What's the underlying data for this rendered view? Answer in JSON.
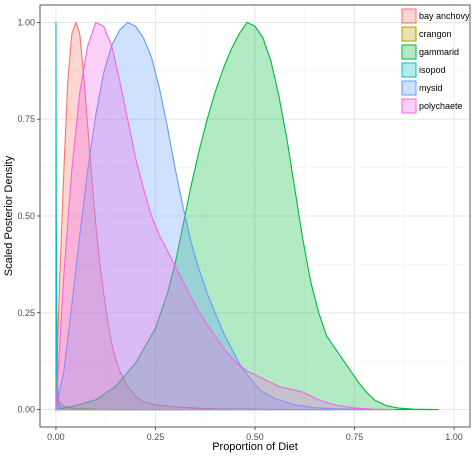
{
  "chart_data": {
    "type": "area",
    "title": "",
    "xlabel": "Proportion of Diet",
    "ylabel": "Scaled Posterior Density",
    "xlim": [
      -0.04,
      1.04
    ],
    "ylim": [
      -0.045,
      1.045
    ],
    "x_ticks": [
      0.0,
      0.25,
      0.5,
      0.75,
      1.0
    ],
    "x_tick_labels": [
      "0.00",
      "0.25",
      "0.50",
      "0.75",
      "1.00"
    ],
    "y_ticks": [
      0.0,
      0.25,
      0.5,
      0.75,
      1.0
    ],
    "y_tick_labels": [
      "0.00",
      "0.25",
      "0.50",
      "0.75",
      "1.00"
    ],
    "grid": true,
    "legend_position": "top-right",
    "series": [
      {
        "name": "bay anchovy",
        "color": "#F8766D",
        "points": [
          [
            0,
            0
          ],
          [
            0.005,
            0.2
          ],
          [
            0.01,
            0.35
          ],
          [
            0.02,
            0.62
          ],
          [
            0.03,
            0.85
          ],
          [
            0.04,
            0.97
          ],
          [
            0.05,
            1.0
          ],
          [
            0.06,
            0.97
          ],
          [
            0.07,
            0.86
          ],
          [
            0.08,
            0.73
          ],
          [
            0.09,
            0.6
          ],
          [
            0.1,
            0.48
          ],
          [
            0.11,
            0.38
          ],
          [
            0.12,
            0.3
          ],
          [
            0.13,
            0.23
          ],
          [
            0.14,
            0.17
          ],
          [
            0.15,
            0.13
          ],
          [
            0.16,
            0.1
          ],
          [
            0.18,
            0.06
          ],
          [
            0.2,
            0.035
          ],
          [
            0.22,
            0.02
          ],
          [
            0.25,
            0.012
          ],
          [
            0.3,
            0.007
          ],
          [
            0.35,
            0.004
          ],
          [
            0.4,
            0.002
          ],
          [
            0.5,
            0.001
          ],
          [
            0.6,
            0
          ]
        ]
      },
      {
        "name": "crangon",
        "color": "#B79F00",
        "points": [
          [
            0,
            0
          ],
          [
            0.003,
            0.04
          ],
          [
            0.008,
            0.02
          ],
          [
            0.02,
            0.008
          ],
          [
            0.05,
            0.003
          ],
          [
            0.1,
            0.001
          ],
          [
            0.2,
            0
          ]
        ]
      },
      {
        "name": "gammarid",
        "color": "#00BA38",
        "points": [
          [
            0,
            0
          ],
          [
            0.05,
            0.01
          ],
          [
            0.1,
            0.025
          ],
          [
            0.15,
            0.06
          ],
          [
            0.2,
            0.12
          ],
          [
            0.25,
            0.21
          ],
          [
            0.28,
            0.3
          ],
          [
            0.3,
            0.38
          ],
          [
            0.32,
            0.48
          ],
          [
            0.34,
            0.58
          ],
          [
            0.36,
            0.67
          ],
          [
            0.38,
            0.75
          ],
          [
            0.4,
            0.82
          ],
          [
            0.42,
            0.88
          ],
          [
            0.44,
            0.93
          ],
          [
            0.46,
            0.97
          ],
          [
            0.48,
            1.0
          ],
          [
            0.5,
            0.99
          ],
          [
            0.52,
            0.96
          ],
          [
            0.54,
            0.9
          ],
          [
            0.56,
            0.81
          ],
          [
            0.58,
            0.7
          ],
          [
            0.6,
            0.57
          ],
          [
            0.62,
            0.44
          ],
          [
            0.64,
            0.33
          ],
          [
            0.66,
            0.25
          ],
          [
            0.68,
            0.19
          ],
          [
            0.7,
            0.16
          ],
          [
            0.72,
            0.13
          ],
          [
            0.74,
            0.1
          ],
          [
            0.76,
            0.07
          ],
          [
            0.78,
            0.045
          ],
          [
            0.8,
            0.025
          ],
          [
            0.83,
            0.01
          ],
          [
            0.86,
            0.004
          ],
          [
            0.9,
            0.001
          ],
          [
            0.96,
            0
          ]
        ]
      },
      {
        "name": "isopod",
        "color": "#00BFC4",
        "points": [
          [
            0,
            0
          ],
          [
            0.0001,
            1.0
          ],
          [
            0.001,
            0.5
          ],
          [
            0.003,
            0.1
          ],
          [
            0.006,
            0.02
          ],
          [
            0.01,
            0.005
          ],
          [
            0.02,
            0
          ]
        ]
      },
      {
        "name": "mysid",
        "color": "#619CFF",
        "points": [
          [
            0,
            0
          ],
          [
            0.02,
            0.1
          ],
          [
            0.04,
            0.27
          ],
          [
            0.06,
            0.45
          ],
          [
            0.08,
            0.62
          ],
          [
            0.1,
            0.76
          ],
          [
            0.12,
            0.87
          ],
          [
            0.14,
            0.94
          ],
          [
            0.16,
            0.98
          ],
          [
            0.18,
            1.0
          ],
          [
            0.2,
            0.99
          ],
          [
            0.22,
            0.96
          ],
          [
            0.24,
            0.91
          ],
          [
            0.26,
            0.83
          ],
          [
            0.28,
            0.73
          ],
          [
            0.3,
            0.62
          ],
          [
            0.32,
            0.52
          ],
          [
            0.34,
            0.43
          ],
          [
            0.36,
            0.36
          ],
          [
            0.38,
            0.3
          ],
          [
            0.4,
            0.25
          ],
          [
            0.42,
            0.2
          ],
          [
            0.44,
            0.16
          ],
          [
            0.46,
            0.12
          ],
          [
            0.48,
            0.09
          ],
          [
            0.5,
            0.065
          ],
          [
            0.52,
            0.045
          ],
          [
            0.55,
            0.028
          ],
          [
            0.6,
            0.012
          ],
          [
            0.65,
            0.005
          ],
          [
            0.7,
            0.002
          ],
          [
            0.8,
            0
          ]
        ]
      },
      {
        "name": "polychaete",
        "color": "#F564E3",
        "points": [
          [
            0,
            0
          ],
          [
            0.02,
            0.35
          ],
          [
            0.04,
            0.62
          ],
          [
            0.06,
            0.82
          ],
          [
            0.08,
            0.94
          ],
          [
            0.1,
            1.0
          ],
          [
            0.12,
            0.99
          ],
          [
            0.14,
            0.94
          ],
          [
            0.16,
            0.85
          ],
          [
            0.18,
            0.75
          ],
          [
            0.2,
            0.65
          ],
          [
            0.22,
            0.57
          ],
          [
            0.24,
            0.5
          ],
          [
            0.26,
            0.45
          ],
          [
            0.28,
            0.41
          ],
          [
            0.3,
            0.37
          ],
          [
            0.32,
            0.33
          ],
          [
            0.34,
            0.29
          ],
          [
            0.36,
            0.25
          ],
          [
            0.38,
            0.22
          ],
          [
            0.4,
            0.19
          ],
          [
            0.42,
            0.16
          ],
          [
            0.44,
            0.135
          ],
          [
            0.46,
            0.115
          ],
          [
            0.48,
            0.1
          ],
          [
            0.5,
            0.09
          ],
          [
            0.52,
            0.08
          ],
          [
            0.54,
            0.07
          ],
          [
            0.56,
            0.06
          ],
          [
            0.58,
            0.055
          ],
          [
            0.6,
            0.05
          ],
          [
            0.62,
            0.045
          ],
          [
            0.64,
            0.035
          ],
          [
            0.66,
            0.025
          ],
          [
            0.7,
            0.012
          ],
          [
            0.75,
            0.004
          ],
          [
            0.8,
            0.001
          ],
          [
            0.85,
            0
          ]
        ]
      }
    ]
  }
}
